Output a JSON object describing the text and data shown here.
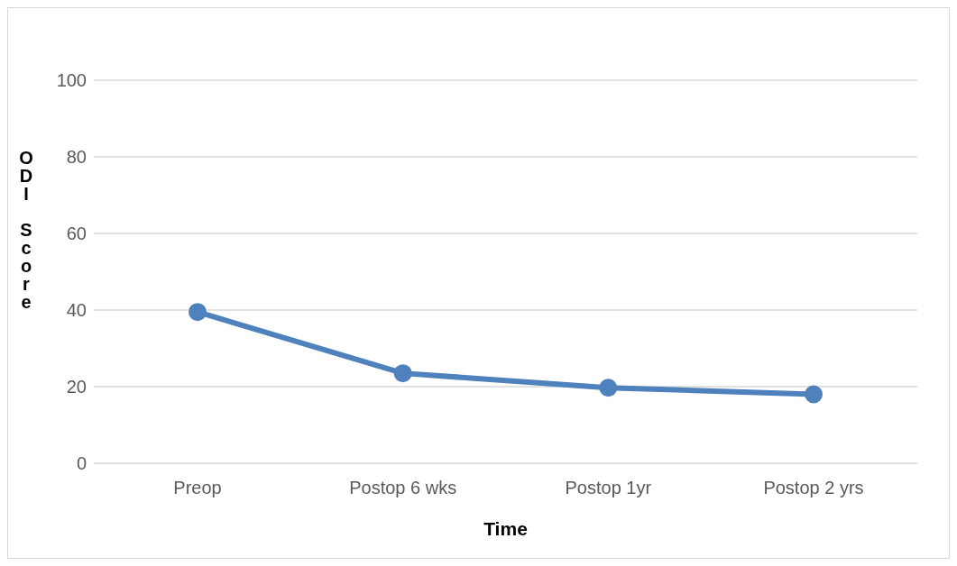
{
  "chart_data": {
    "type": "line",
    "xlabel": "Time",
    "ylabel": "ODI Score",
    "categories": [
      "Preop",
      "Postop 6 wks",
      "Postop 1yr",
      "Postop 2 yrs"
    ],
    "series": [
      {
        "color": "#4f81bd",
        "values": [
          39.5,
          23.5,
          19.7,
          18
        ]
      }
    ],
    "ylim": [
      0,
      100
    ],
    "yticks": [
      0,
      20,
      40,
      60,
      80,
      100
    ],
    "grid": "y",
    "marker": "circle",
    "line_style": "solid",
    "legend": false
  }
}
